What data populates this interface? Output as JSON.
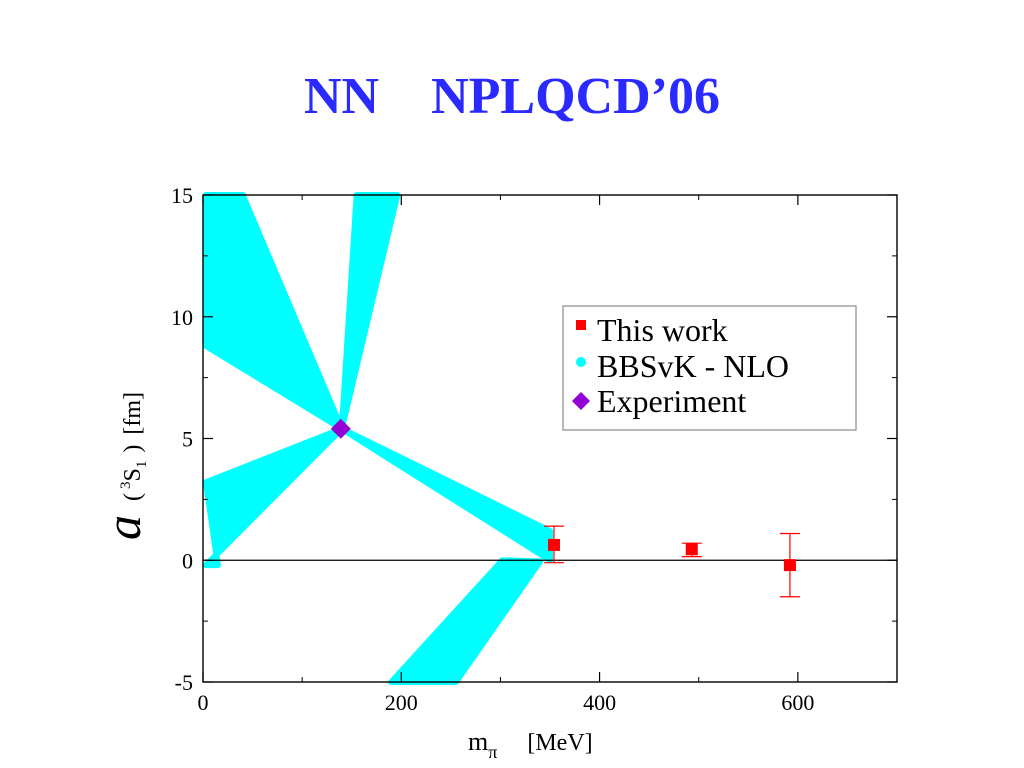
{
  "slide": {
    "title": "NN    NPLQCD’06"
  },
  "chart_data": {
    "type": "scatter",
    "xlabel": {
      "main": "m",
      "sub": "π",
      "unit": "[MeV]"
    },
    "ylabel": {
      "main": "a",
      "paren_open": "(",
      "sup": "3",
      "core": "S",
      "sub": "1",
      "paren_close": ")",
      "unit": "[fm]"
    },
    "xlim": [
      0,
      700
    ],
    "ylim": [
      -5,
      15
    ],
    "x_ticks": [
      0,
      200,
      400,
      600
    ],
    "y_ticks": [
      -5,
      0,
      5,
      10,
      15
    ],
    "reference_line": {
      "y": 0
    },
    "legend": {
      "placement": "upper-right",
      "entries": [
        {
          "label": "This work",
          "marker": "square",
          "color": "#ff0000"
        },
        {
          "label": "BBSvK - NLO",
          "marker": "circle",
          "color": "#00ffff"
        },
        {
          "label": "Experiment",
          "marker": "diamond",
          "color": "#9400d3"
        }
      ]
    },
    "series": [
      {
        "name": "This work",
        "color": "#ff0000",
        "points": [
          {
            "x": 354,
            "y": 0.63,
            "ylow": -0.1,
            "yhigh": 1.4
          },
          {
            "x": 493,
            "y": 0.45,
            "ylow": 0.15,
            "yhigh": 0.7
          },
          {
            "x": 592,
            "y": -0.2,
            "ylow": -1.5,
            "yhigh": 1.1
          }
        ]
      },
      {
        "name": "BBSvK - NLO",
        "color": "#00ffff",
        "bands": [
          {
            "part": "upper-left",
            "polygon": [
              [
                3,
                15
              ],
              [
                40,
                15
              ],
              [
                140,
                5.4
              ],
              [
                3,
                8.8
              ]
            ]
          },
          {
            "part": "upper-right",
            "polygon": [
              [
                155,
                15
              ],
              [
                196,
                15
              ],
              [
                140,
                5.4
              ]
            ]
          },
          {
            "part": "lower-left",
            "polygon": [
              [
                3,
                3.2
              ],
              [
                140,
                5.4
              ],
              [
                3,
                -0.2
              ],
              [
                15,
                -0.2
              ]
            ]
          },
          {
            "part": "lower-right",
            "polygon": [
              [
                140,
                5.4
              ],
              [
                350,
                1.2
              ],
              [
                350,
                0
              ]
            ]
          },
          {
            "part": "negative-branch",
            "polygon": [
              [
                302,
                0
              ],
              [
                190,
                -5
              ],
              [
                255,
                -5
              ],
              [
                340,
                -0.05
              ]
            ]
          }
        ]
      },
      {
        "name": "Experiment",
        "color": "#9400d3",
        "points": [
          {
            "x": 139,
            "y": 5.4
          }
        ]
      }
    ]
  }
}
